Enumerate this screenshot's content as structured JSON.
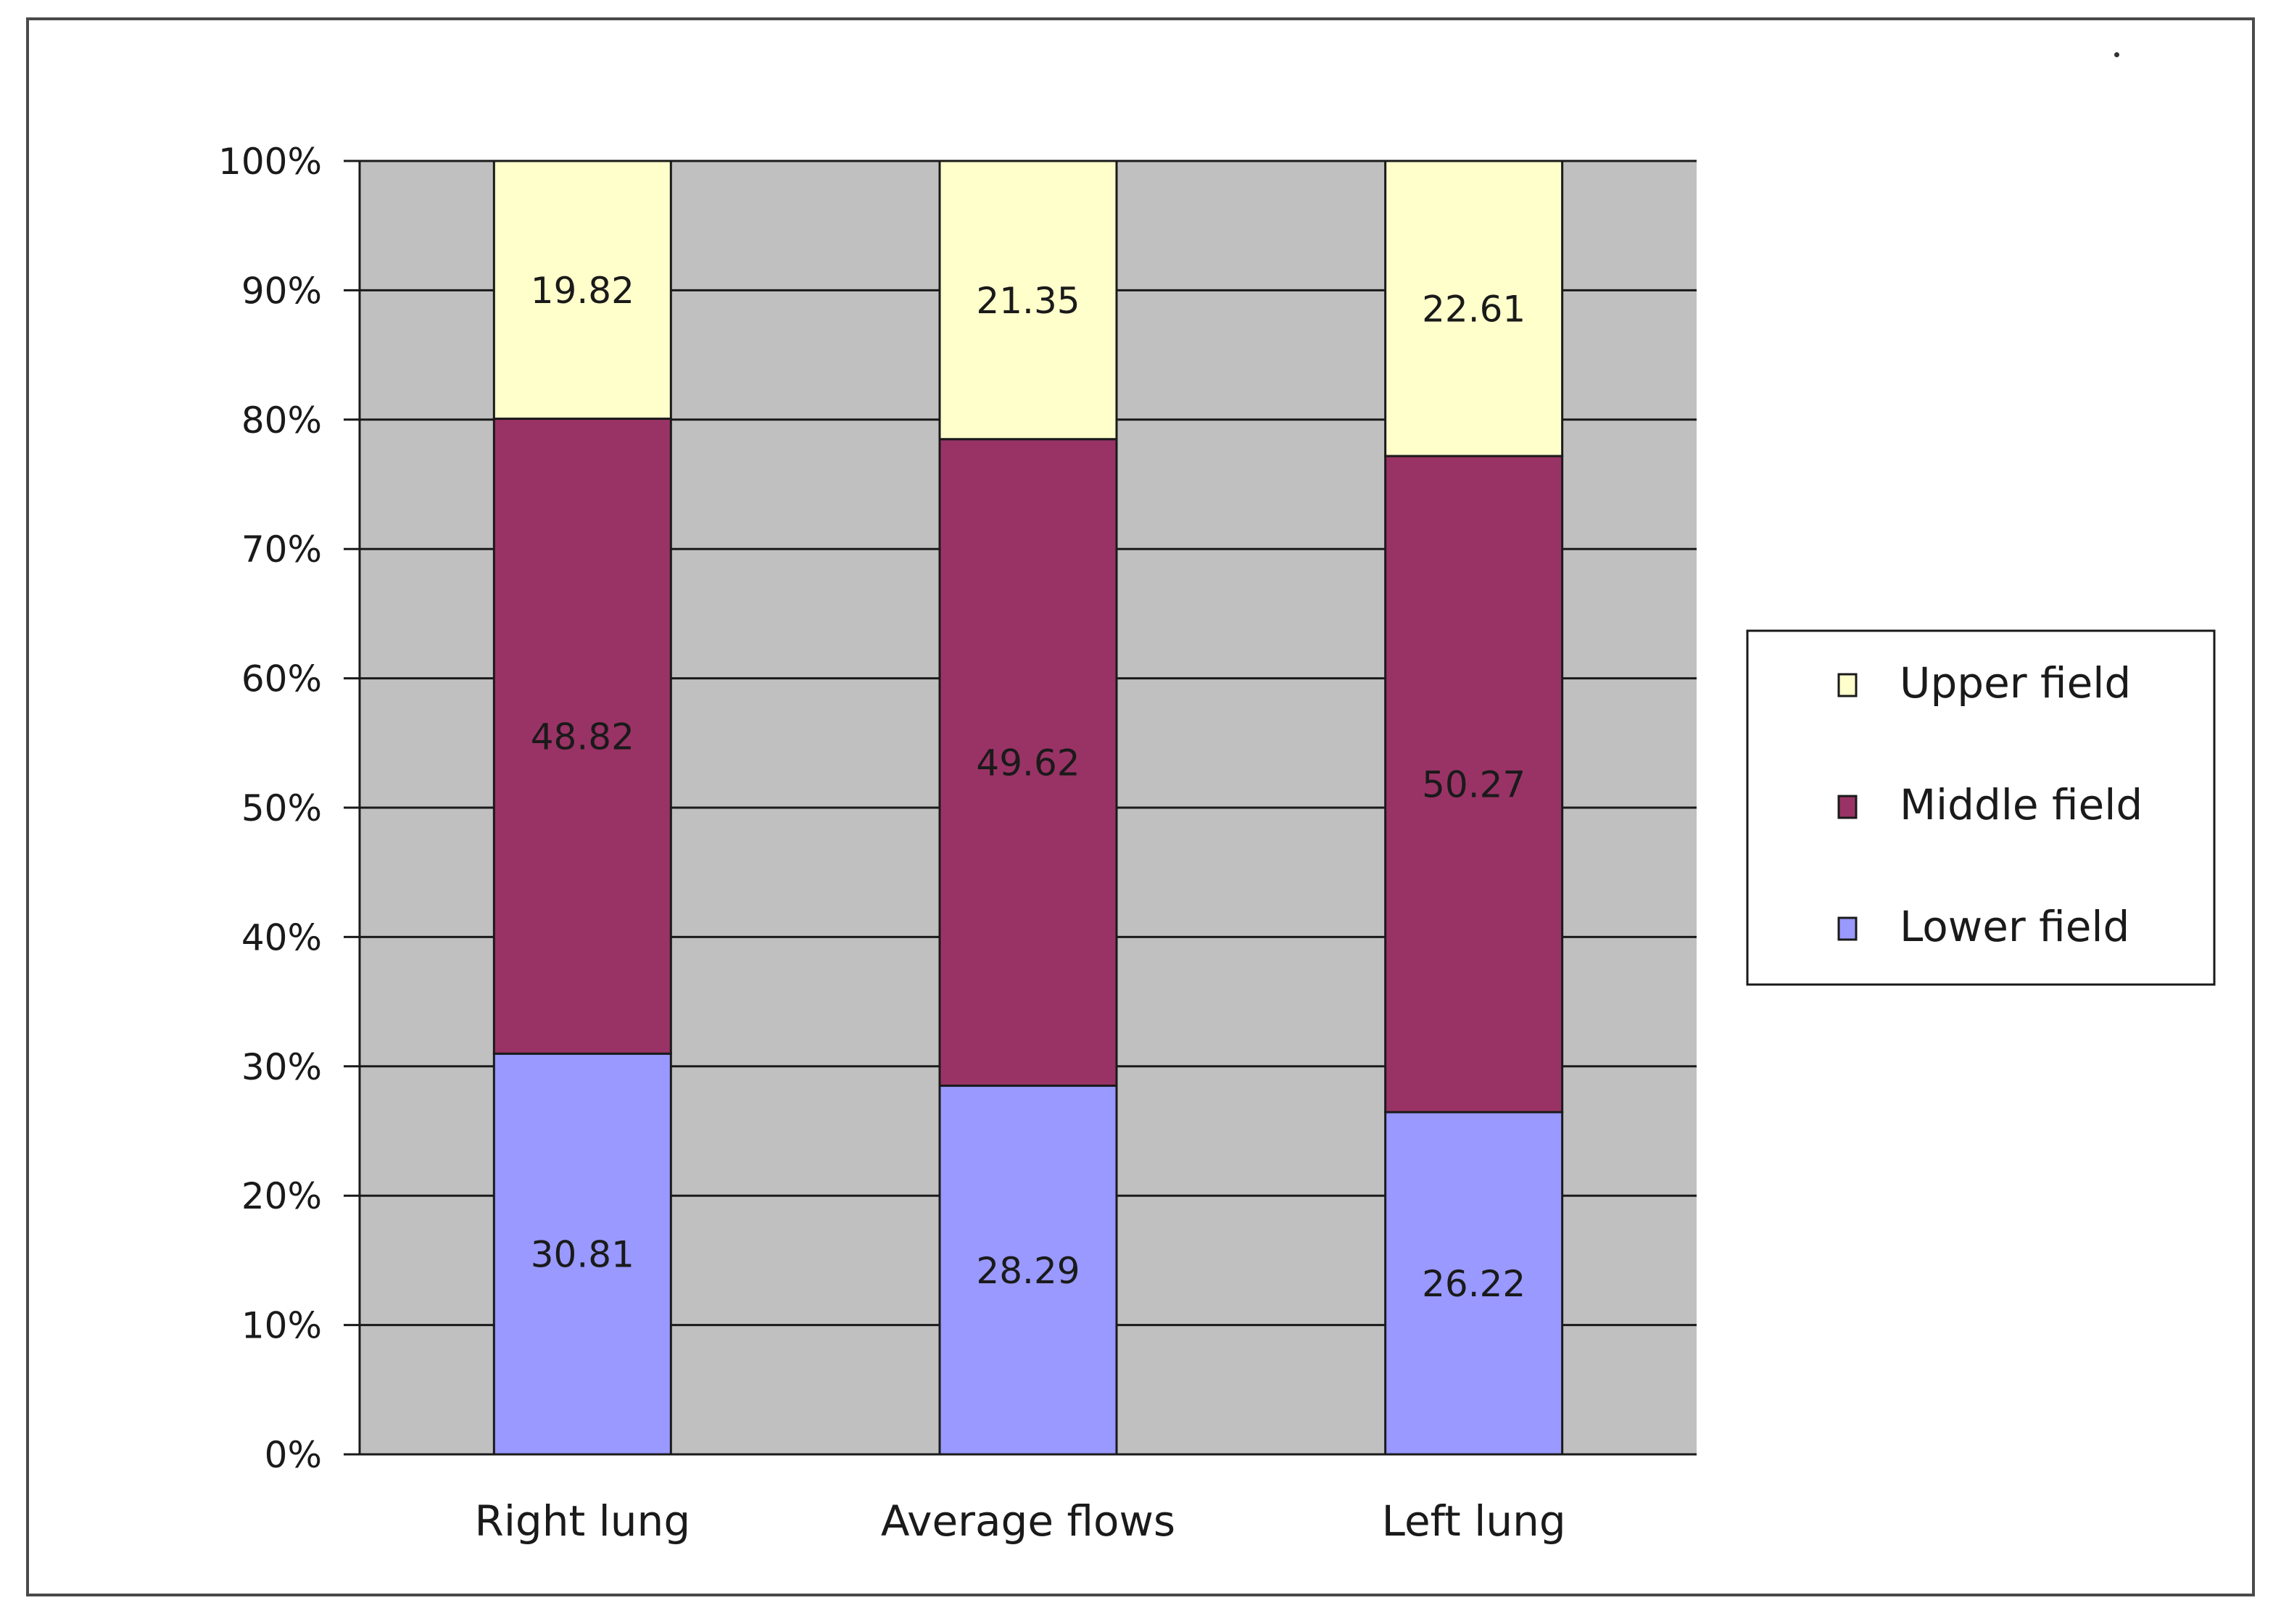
{
  "chart_data": {
    "type": "bar",
    "stacked": true,
    "normalized_percent": true,
    "categories": [
      "Right lung",
      "Average flows",
      "Left lung"
    ],
    "series": [
      {
        "name": "Lower field",
        "values": [
          30.81,
          28.29,
          26.22
        ],
        "color": "#9999ff"
      },
      {
        "name": "Middle field",
        "values": [
          48.82,
          49.62,
          50.27
        ],
        "color": "#993366"
      },
      {
        "name": "Upper field",
        "values": [
          19.82,
          21.35,
          22.61
        ],
        "color": "#ffffcc"
      }
    ],
    "yticks": [
      "0%",
      "10%",
      "20%",
      "30%",
      "40%",
      "50%",
      "60%",
      "70%",
      "80%",
      "90%",
      "100%"
    ],
    "ylim": [
      0,
      100
    ],
    "grid": true,
    "plot_background": "#c0c0c0",
    "legend": {
      "position": "right",
      "order": [
        "Upper field",
        "Middle field",
        "Lower field"
      ]
    },
    "title": "",
    "xlabel": "",
    "ylabel": ""
  }
}
